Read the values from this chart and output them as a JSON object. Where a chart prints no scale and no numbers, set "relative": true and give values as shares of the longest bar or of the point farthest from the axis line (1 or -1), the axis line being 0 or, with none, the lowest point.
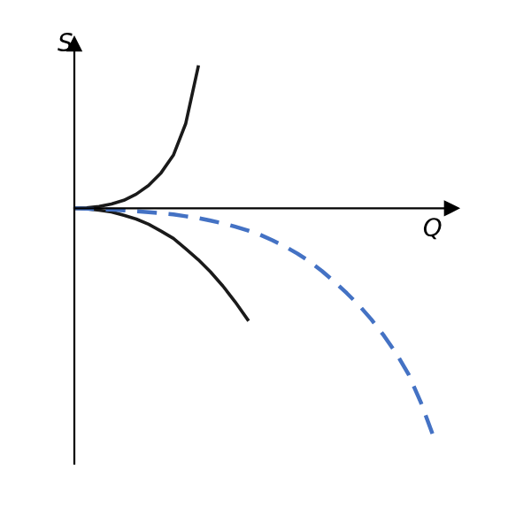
{
  "chart_data": {
    "type": "line",
    "relative": true,
    "xlabel": "Q",
    "ylabel": "S",
    "tick_labels": false,
    "legend": false,
    "marker": "none",
    "categories": [
      null,
      null,
      null,
      null,
      null,
      null,
      null,
      null,
      null,
      null,
      null,
      null,
      null,
      null,
      null,
      null,
      null,
      null,
      null,
      null,
      null,
      null,
      null,
      null,
      null,
      null,
      null,
      null,
      null,
      null
    ],
    "series": [
      {
        "color": "#1a1a1a",
        "line_style": "solid",
        "values": [
          0,
          0.002,
          0.008,
          0.019,
          0.035,
          0.062,
          0.1,
          0.155,
          0.233,
          0.372,
          0.62,
          null,
          null,
          null,
          null,
          null,
          null,
          null,
          null,
          null,
          null,
          null,
          null,
          null,
          null,
          null,
          null,
          null,
          null,
          null
        ]
      },
      {
        "color": "#1a1a1a",
        "line_style": "solid",
        "values": [
          0,
          -0.002,
          -0.008,
          -0.016,
          -0.031,
          -0.047,
          -0.07,
          -0.1,
          -0.132,
          -0.178,
          -0.225,
          -0.279,
          -0.341,
          -0.411,
          -0.488,
          null,
          null,
          null,
          null,
          null,
          null,
          null,
          null,
          null,
          null,
          null,
          null,
          null,
          null,
          null
        ]
      },
      {
        "color": "#4472c4",
        "line_style": "dashed",
        "values": [
          0,
          -0.002,
          -0.004,
          -0.006,
          -0.009,
          -0.013,
          -0.017,
          -0.022,
          -0.027,
          -0.035,
          -0.043,
          -0.054,
          -0.066,
          -0.081,
          -0.097,
          -0.116,
          -0.14,
          -0.167,
          -0.198,
          -0.233,
          -0.275,
          -0.322,
          -0.372,
          -0.426,
          -0.488,
          -0.558,
          -0.636,
          -0.729,
          -0.853,
          -1
        ]
      }
    ]
  }
}
